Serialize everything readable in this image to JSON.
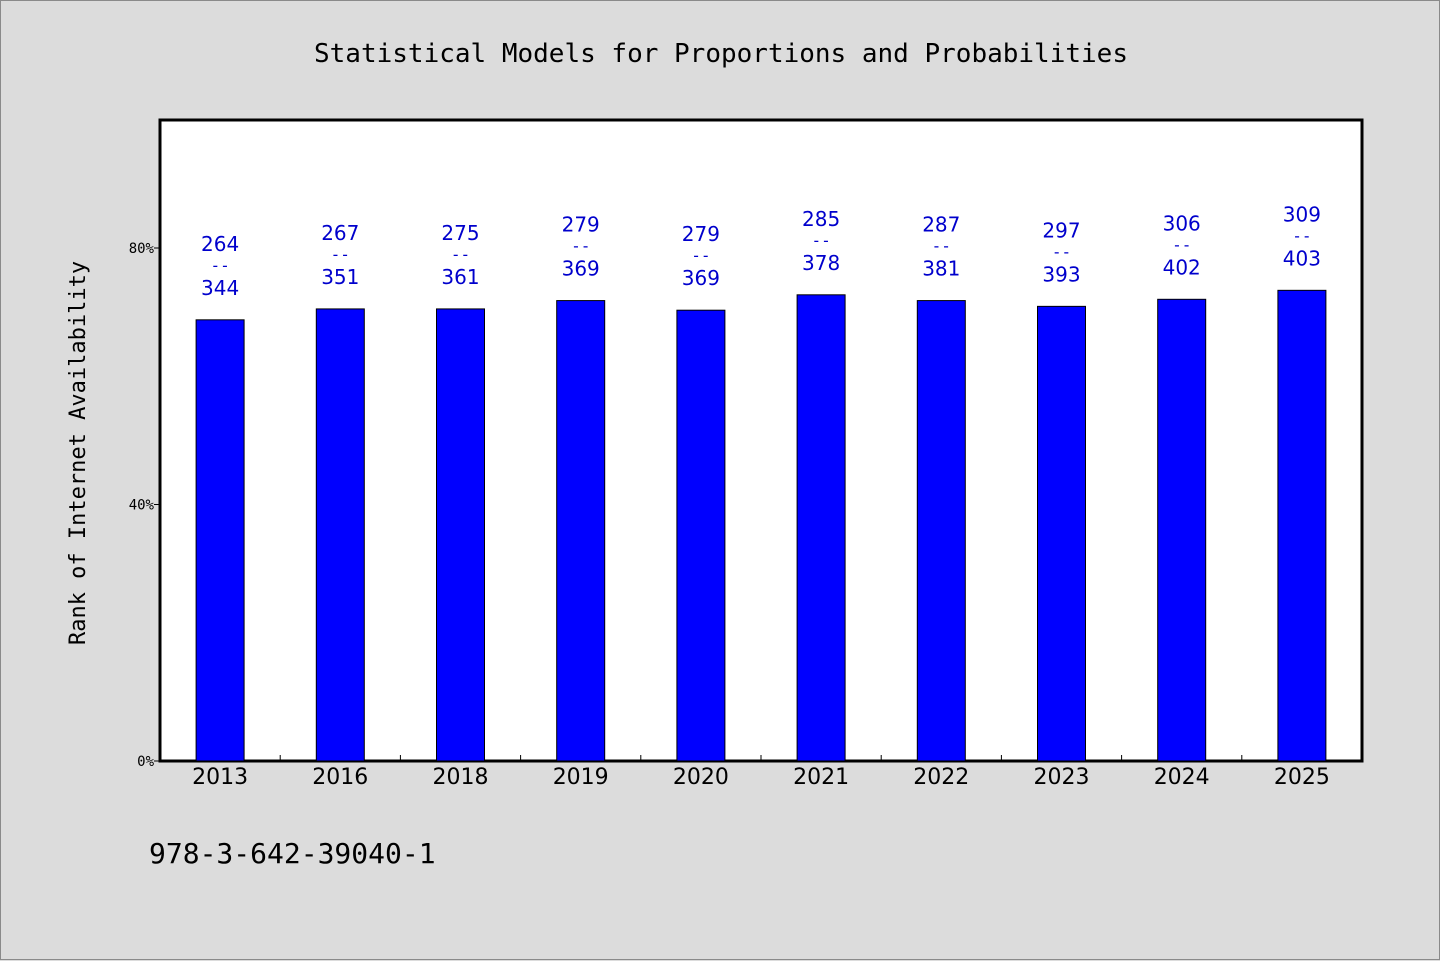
{
  "chart_data": {
    "type": "bar",
    "title": "Statistical Models for Proportions and Probabilities",
    "xlabel": "",
    "ylabel": "Rank of Internet Availability",
    "categories": [
      "2013",
      "2016",
      "2018",
      "2019",
      "2020",
      "2021",
      "2022",
      "2023",
      "2024",
      "2025"
    ],
    "values": [
      0.688,
      0.705,
      0.705,
      0.718,
      0.703,
      0.727,
      0.718,
      0.709,
      0.72,
      0.734
    ],
    "ylim": [
      0,
      1.0
    ],
    "yticks": [
      {
        "value": 0,
        "label": "0%"
      },
      {
        "value": 0.4,
        "label": "40%"
      },
      {
        "value": 0.8,
        "label": "80%"
      }
    ],
    "data_labels": [
      {
        "top": "264",
        "sep": "--",
        "bottom": "344"
      },
      {
        "top": "267",
        "sep": "--",
        "bottom": "351"
      },
      {
        "top": "275",
        "sep": "--",
        "bottom": "361"
      },
      {
        "top": "279",
        "sep": "--",
        "bottom": "369"
      },
      {
        "top": "279",
        "sep": "--",
        "bottom": "369"
      },
      {
        "top": "285",
        "sep": "--",
        "bottom": "378"
      },
      {
        "top": "287",
        "sep": "--",
        "bottom": "381"
      },
      {
        "top": "297",
        "sep": "--",
        "bottom": "393"
      },
      {
        "top": "306",
        "sep": "--",
        "bottom": "402"
      },
      {
        "top": "309",
        "sep": "--",
        "bottom": "403"
      }
    ],
    "grid": false,
    "bar_color": "#0000ff",
    "label_color": "#0000cc",
    "plot_background": "#ffffff",
    "page_background": "#dcdcdc"
  },
  "footer": {
    "text": "978-3-642-39040-1"
  }
}
